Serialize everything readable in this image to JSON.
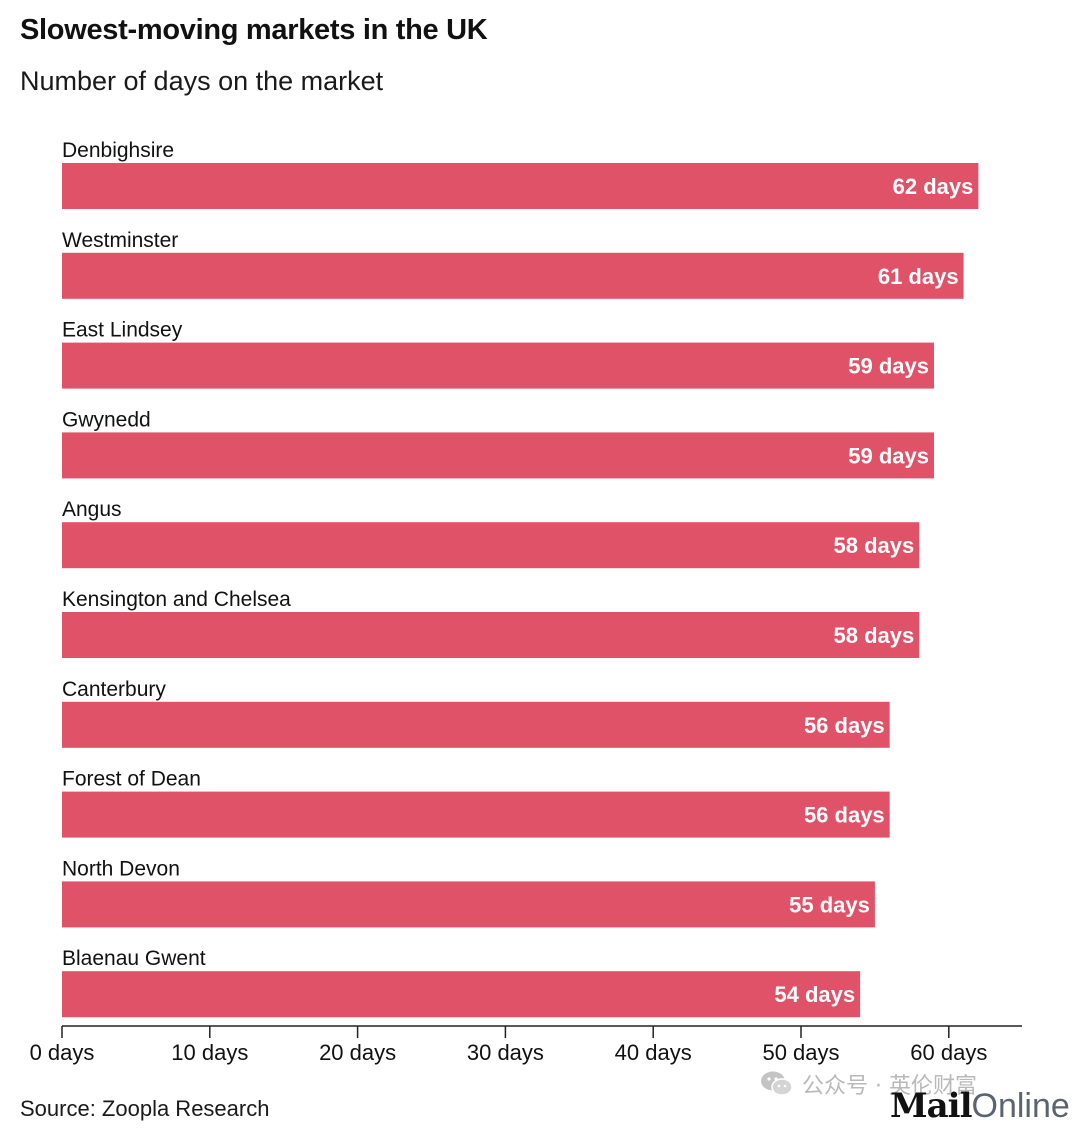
{
  "header": {
    "title": "Slowest-moving markets in the UK",
    "subtitle": "Number of days on the market"
  },
  "colors": {
    "bar": "#e05267",
    "bar_label": "#ffffff",
    "axis": "#222222",
    "text": "#111111"
  },
  "chart_data": {
    "type": "bar",
    "orientation": "horizontal",
    "title": "Slowest-moving markets in the UK",
    "subtitle": "Number of days on the market",
    "categories": [
      "Denbighsire",
      "Westminster",
      "East Lindsey",
      "Gwynedd",
      "Angus",
      "Kensington and Chelsea",
      "Canterbury",
      "Forest of Dean",
      "North Devon",
      "Blaenau Gwent"
    ],
    "values": [
      62,
      61,
      59,
      59,
      58,
      58,
      56,
      56,
      55,
      54
    ],
    "value_labels": [
      "62 days",
      "61 days",
      "59 days",
      "59 days",
      "58 days",
      "58 days",
      "56 days",
      "56 days",
      "55 days",
      "54 days"
    ],
    "xlim": [
      0,
      65
    ],
    "x_ticks": [
      0,
      10,
      20,
      30,
      40,
      50,
      60
    ],
    "x_tick_labels": [
      "0 days",
      "10 days",
      "20 days",
      "30 days",
      "40 days",
      "50 days",
      "60 days"
    ],
    "grid": false,
    "legend": "none"
  },
  "footer": {
    "source": "Source: Zoopla Research",
    "watermark": "公众号 · 英伦财富",
    "brand_mail": "Mail",
    "brand_online": "Online"
  },
  "icons": {
    "watermark_icon": "wechat-icon"
  }
}
